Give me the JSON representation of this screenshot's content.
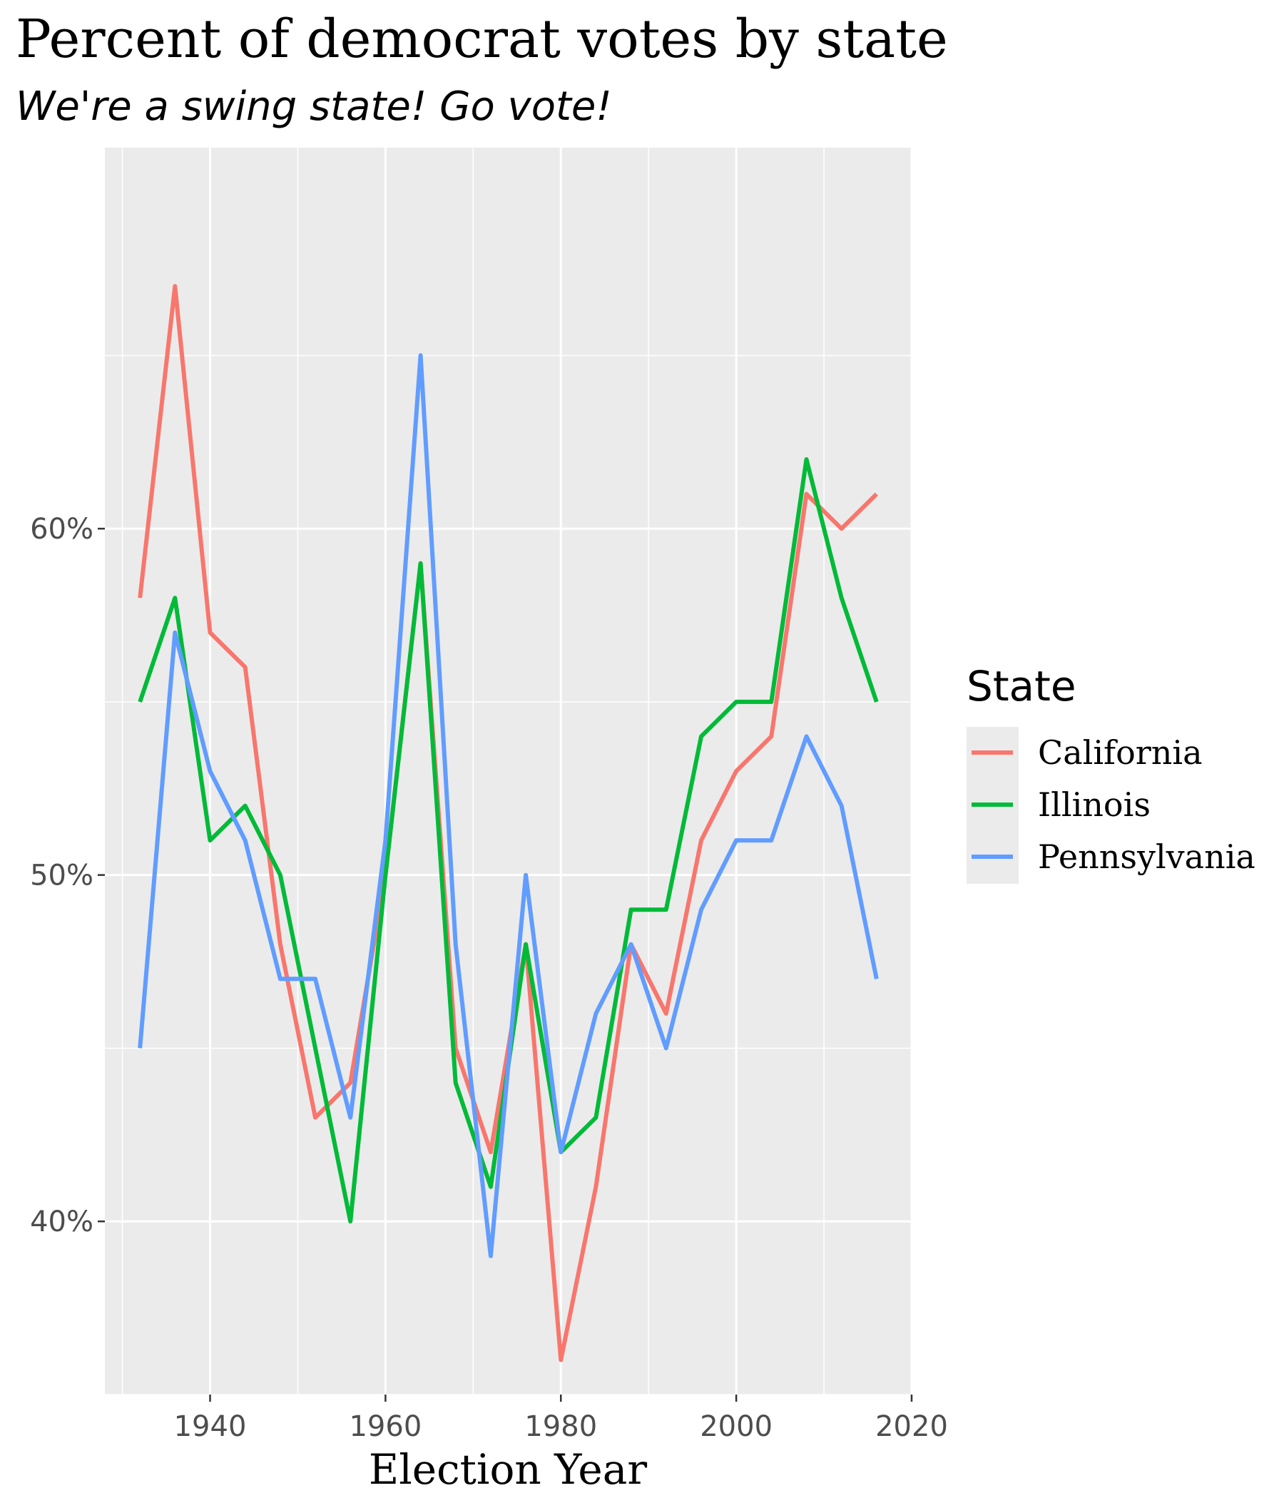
{
  "chart_data": {
    "type": "line",
    "title": "Percent of democrat votes by state",
    "subtitle": "We're a swing state! Go vote!",
    "xlabel": "Election Year",
    "ylabel": "",
    "xlim": [
      1928,
      2020
    ],
    "ylim": [
      35,
      71
    ],
    "x_ticks": [
      1940,
      1960,
      1980,
      2000,
      2020
    ],
    "y_ticks": [
      40,
      50,
      60
    ],
    "y_tick_labels": [
      "40%",
      "50%",
      "60%"
    ],
    "grid": true,
    "legend": {
      "title": "State",
      "position": "right"
    },
    "x": [
      1932,
      1936,
      1940,
      1944,
      1948,
      1952,
      1956,
      1960,
      1964,
      1968,
      1972,
      1976,
      1980,
      1984,
      1988,
      1992,
      1996,
      2000,
      2004,
      2008,
      2012,
      2016
    ],
    "series": [
      {
        "name": "California",
        "color": "#F8766D",
        "values": [
          58,
          67,
          57,
          56,
          48,
          43,
          44,
          50,
          59,
          45,
          42,
          48,
          36,
          41,
          48,
          46,
          51,
          53,
          54,
          61,
          60,
          61
        ]
      },
      {
        "name": "Illinois",
        "color": "#00BA38",
        "values": [
          55,
          58,
          51,
          52,
          50,
          45,
          40,
          50,
          59,
          44,
          41,
          48,
          42,
          43,
          49,
          49,
          54,
          55,
          55,
          62,
          58,
          55
        ]
      },
      {
        "name": "Pennsylvania",
        "color": "#619CFF",
        "values": [
          45,
          57,
          53,
          51,
          47,
          47,
          43,
          51,
          65,
          48,
          39,
          50,
          42,
          46,
          48,
          45,
          49,
          51,
          51,
          54,
          52,
          47
        ]
      }
    ]
  }
}
